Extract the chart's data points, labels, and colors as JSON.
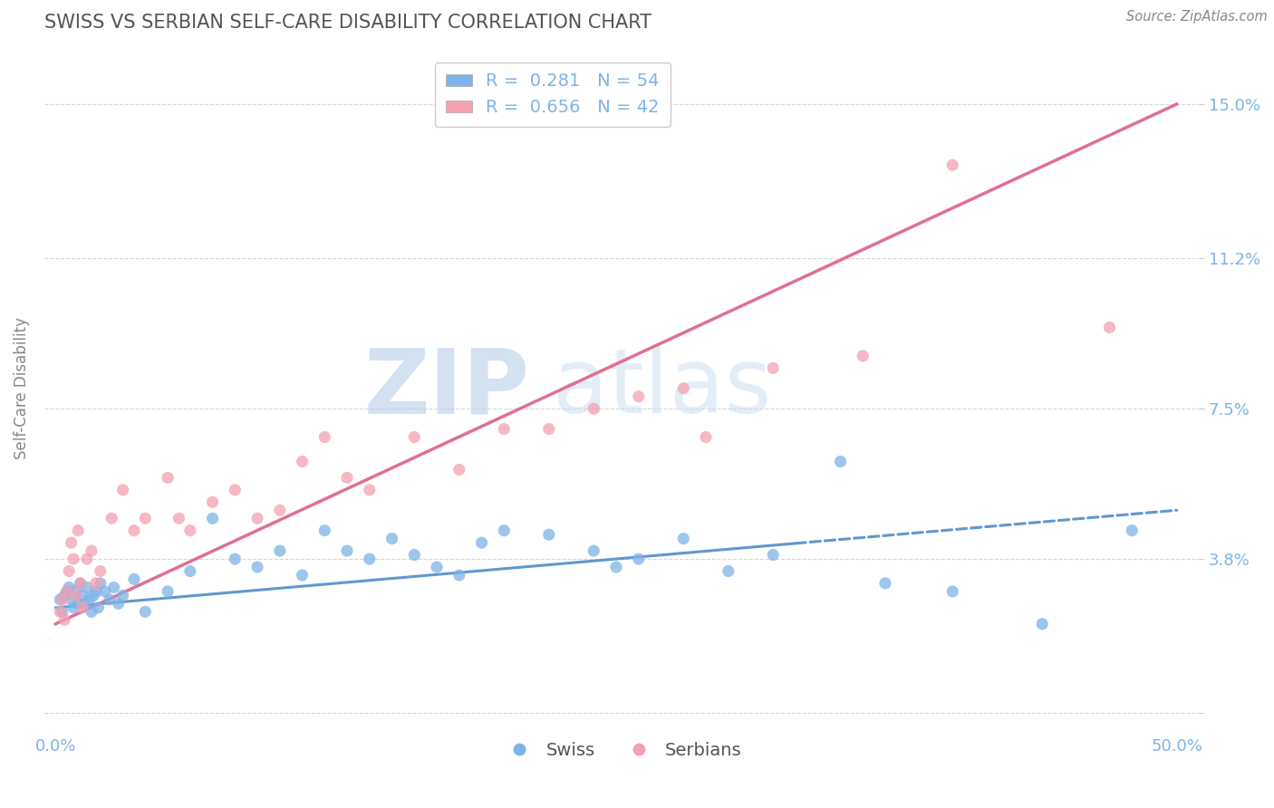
{
  "title": "SWISS VS SERBIAN SELF-CARE DISABILITY CORRELATION CHART",
  "source": "Source: ZipAtlas.com",
  "xlabel_swiss": "Swiss",
  "xlabel_serbians": "Serbians",
  "ylabel": "Self-Care Disability",
  "xlim": [
    -0.5,
    51.0
  ],
  "ylim": [
    -0.5,
    16.5
  ],
  "yticks": [
    0.0,
    3.8,
    7.5,
    11.2,
    15.0
  ],
  "xticks": [
    0.0,
    50.0
  ],
  "xtick_labels": [
    "0.0%",
    "50.0%"
  ],
  "ytick_labels": [
    "",
    "3.8%",
    "7.5%",
    "11.2%",
    "15.0%"
  ],
  "swiss_color": "#7EB3E8",
  "serbian_color": "#F4A0B0",
  "swiss_line_color": "#6098D0",
  "serbian_line_color": "#E07090",
  "swiss_R": 0.281,
  "swiss_N": 54,
  "serbian_R": 0.656,
  "serbian_N": 42,
  "background_color": "#FFFFFF",
  "grid_color": "#CCCCCC",
  "title_color": "#555555",
  "tick_color": "#7EB3E8",
  "watermark_color": "#D8E8F5",
  "watermark": "ZIPatlas",
  "swiss_points_x": [
    0.2,
    0.3,
    0.4,
    0.5,
    0.6,
    0.7,
    0.8,
    0.9,
    1.0,
    1.1,
    1.2,
    1.3,
    1.4,
    1.5,
    1.6,
    1.7,
    1.8,
    1.9,
    2.0,
    2.2,
    2.4,
    2.6,
    2.8,
    3.0,
    3.5,
    4.0,
    5.0,
    6.0,
    7.0,
    8.0,
    9.0,
    10.0,
    11.0,
    12.0,
    13.0,
    14.0,
    15.0,
    16.0,
    17.0,
    18.0,
    19.0,
    20.0,
    22.0,
    24.0,
    25.0,
    26.0,
    28.0,
    30.0,
    32.0,
    35.0,
    37.0,
    40.0,
    44.0,
    48.0
  ],
  "swiss_points_y": [
    2.8,
    2.5,
    2.9,
    3.0,
    3.1,
    2.8,
    2.6,
    3.0,
    2.7,
    3.2,
    2.9,
    2.7,
    3.1,
    2.8,
    2.5,
    2.9,
    3.0,
    2.6,
    3.2,
    3.0,
    2.8,
    3.1,
    2.7,
    2.9,
    3.3,
    2.5,
    3.0,
    3.5,
    4.8,
    3.8,
    3.6,
    4.0,
    3.4,
    4.5,
    4.0,
    3.8,
    4.3,
    3.9,
    3.6,
    3.4,
    4.2,
    4.5,
    4.4,
    4.0,
    3.6,
    3.8,
    4.3,
    3.5,
    3.9,
    6.2,
    3.2,
    3.0,
    2.2,
    4.5
  ],
  "serbian_points_x": [
    0.2,
    0.3,
    0.4,
    0.5,
    0.6,
    0.7,
    0.8,
    0.9,
    1.0,
    1.1,
    1.2,
    1.4,
    1.6,
    1.8,
    2.0,
    2.5,
    3.0,
    3.5,
    4.0,
    5.0,
    5.5,
    6.0,
    7.0,
    8.0,
    9.0,
    10.0,
    11.0,
    12.0,
    13.0,
    14.0,
    16.0,
    18.0,
    20.0,
    22.0,
    24.0,
    26.0,
    28.0,
    29.0,
    32.0,
    36.0,
    40.0,
    47.0
  ],
  "serbian_points_y": [
    2.5,
    2.8,
    2.3,
    3.0,
    3.5,
    4.2,
    3.8,
    2.9,
    4.5,
    3.2,
    2.6,
    3.8,
    4.0,
    3.2,
    3.5,
    4.8,
    5.5,
    4.5,
    4.8,
    5.8,
    4.8,
    4.5,
    5.2,
    5.5,
    4.8,
    5.0,
    6.2,
    6.8,
    5.8,
    5.5,
    6.8,
    6.0,
    7.0,
    7.0,
    7.5,
    7.8,
    8.0,
    6.8,
    8.5,
    8.8,
    13.5,
    9.5
  ],
  "swiss_line_x0": 0.0,
  "swiss_line_y0": 2.6,
  "swiss_line_x1": 50.0,
  "swiss_line_y1": 5.0,
  "swiss_solid_end": 33.0,
  "serbian_line_x0": 0.0,
  "serbian_line_y0": 2.2,
  "serbian_line_x1": 50.0,
  "serbian_line_y1": 15.0
}
